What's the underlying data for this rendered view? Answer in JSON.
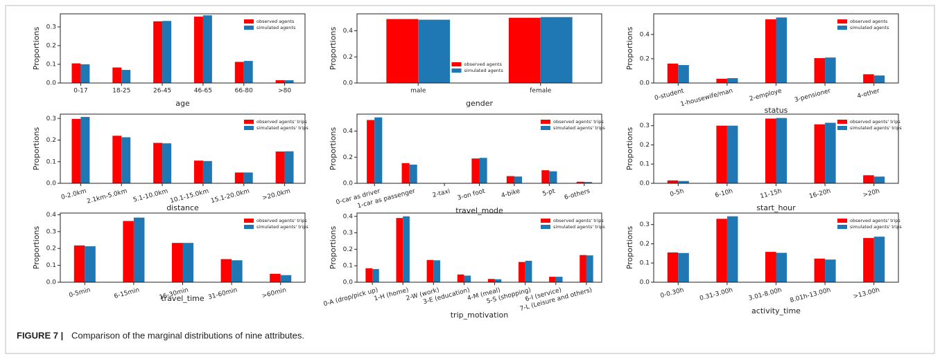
{
  "caption": {
    "label": "FIGURE 7 |",
    "text": "Comparison of the marginal distributions of nine attributes."
  },
  "chart_data": [
    {
      "type": "bar",
      "xlabel": "age",
      "ylabel": "Proportions",
      "legend": "upper right",
      "categories": [
        "0-17",
        "18-25",
        "26-45",
        "46-65",
        "66-80",
        ">80"
      ],
      "series": [
        {
          "name": "observed agents",
          "color": "#ff0000",
          "values": [
            0.105,
            0.083,
            0.33,
            0.355,
            0.113,
            0.015
          ]
        },
        {
          "name": "simulated agents",
          "color": "#1f77b4",
          "values": [
            0.1,
            0.07,
            0.332,
            0.362,
            0.118,
            0.015
          ]
        }
      ],
      "ylim": [
        0,
        0.37
      ],
      "yticks": [
        {
          "value": 0,
          "label": "0.0"
        },
        0.1,
        0.2,
        0.3
      ]
    },
    {
      "type": "bar",
      "xlabel": "gender",
      "ylabel": "Proportions",
      "legend": "lower center",
      "categories": [
        "male",
        "female"
      ],
      "series": [
        {
          "name": "observed agents",
          "color": "#ff0000",
          "values": [
            0.49,
            0.5
          ]
        },
        {
          "name": "simulated agents",
          "color": "#1f77b4",
          "values": [
            0.485,
            0.505
          ]
        }
      ],
      "ylim": [
        0,
        0.53
      ],
      "yticks": [
        {
          "value": 0,
          "label": "0.0"
        },
        0.2,
        0.4
      ]
    },
    {
      "type": "bar",
      "xlabel": "status",
      "ylabel": "Proportions",
      "legend": "upper right",
      "categories": [
        "0-student",
        "1-housewife/man",
        "2-employe",
        "3-pensioner",
        "4-other"
      ],
      "series": [
        {
          "name": "observed agents",
          "color": "#ff0000",
          "values": [
            0.16,
            0.035,
            0.525,
            0.205,
            0.072
          ]
        },
        {
          "name": "simulated agents",
          "color": "#1f77b4",
          "values": [
            0.148,
            0.04,
            0.54,
            0.21,
            0.062
          ]
        }
      ],
      "ylim": [
        0,
        0.57
      ],
      "yticks": [
        {
          "value": 0,
          "label": "0.0"
        },
        0.2,
        0.4
      ]
    },
    {
      "type": "bar",
      "xlabel": "distance",
      "ylabel": "Proportions",
      "legend": "upper right",
      "categories": [
        "0-2.0km",
        "2.1km-5.0km",
        "5.1-10.0km",
        "10.1-15.0km",
        "15.1-20.0km",
        ">20.0km"
      ],
      "series": [
        {
          "name": "observed agents' trips",
          "color": "#ff0000",
          "values": [
            0.298,
            0.22,
            0.187,
            0.105,
            0.05,
            0.147
          ]
        },
        {
          "name": "simulated agents' trips",
          "color": "#1f77b4",
          "values": [
            0.307,
            0.213,
            0.185,
            0.103,
            0.05,
            0.148
          ]
        }
      ],
      "ylim": [
        0,
        0.32
      ],
      "yticks": [
        {
          "value": 0,
          "label": "0.0"
        },
        0.1,
        0.2,
        0.3
      ]
    },
    {
      "type": "bar",
      "xlabel": "travel_mode",
      "ylabel": "Proportions",
      "legend": "upper right",
      "categories": [
        "0-car as driver",
        "1-car as passenger",
        "2-taxi",
        "3-on foot",
        "4-bike",
        "5-pt",
        "6-others"
      ],
      "series": [
        {
          "name": "observed agents' trips",
          "color": "#ff0000",
          "values": [
            0.485,
            0.155,
            0.002,
            0.19,
            0.055,
            0.1,
            0.012
          ]
        },
        {
          "name": "simulated agents' trips",
          "color": "#1f77b4",
          "values": [
            0.505,
            0.143,
            0.001,
            0.195,
            0.052,
            0.092,
            0.01
          ]
        }
      ],
      "ylim": [
        0,
        0.53
      ],
      "yticks": [
        {
          "value": 0,
          "label": "0.0"
        },
        0.2,
        0.4
      ]
    },
    {
      "type": "bar",
      "xlabel": "start_hour",
      "ylabel": "Proportions",
      "legend": "upper right",
      "categories": [
        "0-5h",
        "6-10h",
        "11-15h",
        "16-20h",
        ">20h"
      ],
      "series": [
        {
          "name": "observed agents' trips",
          "color": "#ff0000",
          "values": [
            0.015,
            0.3,
            0.337,
            0.307,
            0.042
          ]
        },
        {
          "name": "simulated agents' trips",
          "color": "#1f77b4",
          "values": [
            0.012,
            0.3,
            0.34,
            0.315,
            0.035
          ]
        }
      ],
      "ylim": [
        0,
        0.36
      ],
      "yticks": [
        {
          "value": 0,
          "label": "0.0"
        },
        0.1,
        0.2,
        0.3
      ]
    },
    {
      "type": "bar",
      "xlabel": "travel_time",
      "ylabel": "Proportions",
      "legend": "upper right",
      "categories": [
        "0-5min",
        "6-15min",
        "16-30min",
        "31-60min",
        ">60min"
      ],
      "series": [
        {
          "name": "observed agents' trips",
          "color": "#ff0000",
          "values": [
            0.218,
            0.363,
            0.233,
            0.137,
            0.05
          ]
        },
        {
          "name": "simulated agents' trips",
          "color": "#1f77b4",
          "values": [
            0.213,
            0.383,
            0.233,
            0.13,
            0.042
          ]
        }
      ],
      "ylim": [
        0,
        0.41
      ],
      "yticks": [
        {
          "value": 0,
          "label": "0.0"
        },
        0.1,
        0.2,
        0.3,
        0.4
      ]
    },
    {
      "type": "bar",
      "xlabel": "trip_motivation",
      "ylabel": "Proportions",
      "legend": "upper right",
      "categories": [
        "0-A (drop/pick up)",
        "1-H (home)",
        "2-W (work)",
        "3-E (education)",
        "4-M (meal)",
        "5-S (shopping)",
        "6-I (service)",
        "7-L (Leisure and others)"
      ],
      "series": [
        {
          "name": "observed agents' trips",
          "color": "#ff0000",
          "values": [
            0.085,
            0.39,
            0.135,
            0.047,
            0.02,
            0.123,
            0.033,
            0.165
          ]
        },
        {
          "name": "simulated agents' trips",
          "color": "#1f77b4",
          "values": [
            0.08,
            0.4,
            0.133,
            0.04,
            0.018,
            0.13,
            0.033,
            0.163
          ]
        }
      ],
      "ylim": [
        0,
        0.42
      ],
      "yticks": [
        {
          "value": 0,
          "label": "0.0"
        },
        0.1,
        0.2,
        0.3,
        0.4
      ]
    },
    {
      "type": "bar",
      "xlabel": "activity_time",
      "ylabel": "Proportions",
      "legend": "upper right",
      "categories": [
        "0-0.30h",
        "0.31-3.00h",
        "3.01-8.00h",
        "8.01h-13.00h",
        ">13.00h"
      ],
      "series": [
        {
          "name": "observed agents' trips",
          "color": "#ff0000",
          "values": [
            0.155,
            0.33,
            0.158,
            0.123,
            0.23
          ]
        },
        {
          "name": "simulated agents' trips",
          "color": "#1f77b4",
          "values": [
            0.152,
            0.343,
            0.153,
            0.118,
            0.237
          ]
        }
      ],
      "ylim": [
        0,
        0.36
      ],
      "yticks": [
        {
          "value": 0,
          "label": "0.0"
        },
        0.1,
        0.2,
        0.3
      ]
    }
  ]
}
